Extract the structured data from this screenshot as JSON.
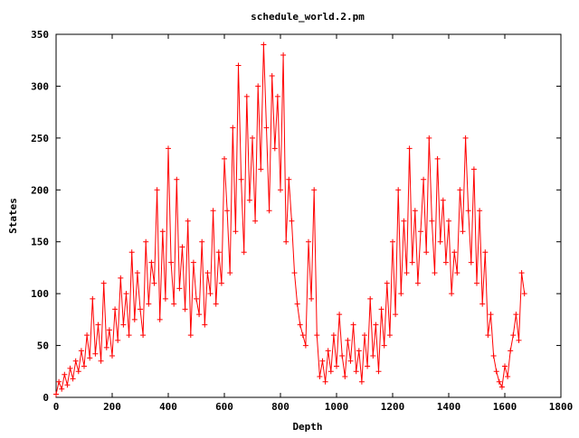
{
  "chart_data": {
    "type": "line",
    "title": "schedule_world.2.pm",
    "xlabel": "Depth",
    "ylabel": "States",
    "xlim": [
      0,
      1800
    ],
    "ylim": [
      0,
      350
    ],
    "x_ticks": [
      0,
      200,
      400,
      600,
      800,
      1000,
      1200,
      1400,
      1600,
      1800
    ],
    "y_ticks": [
      0,
      50,
      100,
      150,
      200,
      250,
      300,
      350
    ],
    "grid": false,
    "legend": "none",
    "marker": "plus",
    "colors": {
      "series": "#ff0000",
      "axes": "#000000"
    },
    "series": [
      {
        "x": [
          0,
          10,
          20,
          30,
          40,
          50,
          60,
          70,
          80,
          90,
          100,
          110,
          120,
          130,
          140,
          150,
          160,
          170,
          180,
          190,
          200,
          210,
          220,
          230,
          240,
          250,
          260,
          270,
          280,
          290,
          300,
          310,
          320,
          330,
          340,
          350,
          360,
          370,
          380,
          390,
          400,
          410,
          420,
          430,
          440,
          450,
          460,
          470,
          480,
          490,
          500,
          510,
          520,
          530,
          540,
          550,
          560,
          570,
          580,
          590,
          600,
          610,
          620,
          630,
          640,
          650,
          660,
          670,
          680,
          690,
          700,
          710,
          720,
          730,
          740,
          750,
          760,
          770,
          780,
          790,
          800,
          810,
          820,
          830,
          840,
          850,
          860,
          870,
          880,
          890,
          900,
          910,
          920,
          930,
          940,
          950,
          960,
          970,
          980,
          990,
          1000,
          1010,
          1020,
          1030,
          1040,
          1050,
          1060,
          1070,
          1080,
          1090,
          1100,
          1110,
          1120,
          1130,
          1140,
          1150,
          1160,
          1170,
          1180,
          1190,
          1200,
          1210,
          1220,
          1230,
          1240,
          1250,
          1260,
          1270,
          1280,
          1290,
          1300,
          1310,
          1320,
          1330,
          1340,
          1350,
          1360,
          1370,
          1380,
          1390,
          1400,
          1410,
          1420,
          1430,
          1440,
          1450,
          1460,
          1470,
          1480,
          1490,
          1500,
          1510,
          1520,
          1530,
          1540,
          1550,
          1560,
          1570,
          1580,
          1590,
          1600,
          1610,
          1620,
          1630,
          1640,
          1650,
          1660,
          1670
        ],
        "y": [
          3,
          15,
          8,
          22,
          12,
          28,
          18,
          35,
          25,
          45,
          30,
          60,
          38,
          95,
          42,
          70,
          35,
          110,
          48,
          65,
          40,
          85,
          55,
          115,
          70,
          100,
          60,
          140,
          75,
          120,
          85,
          60,
          150,
          90,
          130,
          110,
          200,
          75,
          160,
          95,
          240,
          130,
          90,
          210,
          105,
          145,
          85,
          170,
          60,
          130,
          95,
          80,
          150,
          70,
          120,
          100,
          180,
          90,
          140,
          110,
          230,
          180,
          120,
          260,
          160,
          320,
          210,
          140,
          290,
          190,
          250,
          170,
          300,
          220,
          340,
          260,
          180,
          310,
          240,
          290,
          200,
          330,
          150,
          210,
          170,
          120,
          90,
          70,
          60,
          50,
          150,
          95,
          200,
          60,
          20,
          35,
          15,
          45,
          25,
          60,
          30,
          80,
          40,
          20,
          55,
          35,
          70,
          25,
          45,
          15,
          60,
          30,
          95,
          40,
          70,
          25,
          85,
          50,
          110,
          60,
          150,
          80,
          200,
          100,
          170,
          120,
          240,
          130,
          180,
          110,
          160,
          210,
          140,
          250,
          170,
          120,
          230,
          150,
          190,
          130,
          170,
          100,
          140,
          120,
          200,
          160,
          250,
          180,
          130,
          220,
          110,
          180,
          90,
          140,
          60,
          80,
          40,
          25,
          15,
          10,
          30,
          20,
          45,
          60,
          80,
          55,
          120,
          100
        ]
      }
    ]
  }
}
